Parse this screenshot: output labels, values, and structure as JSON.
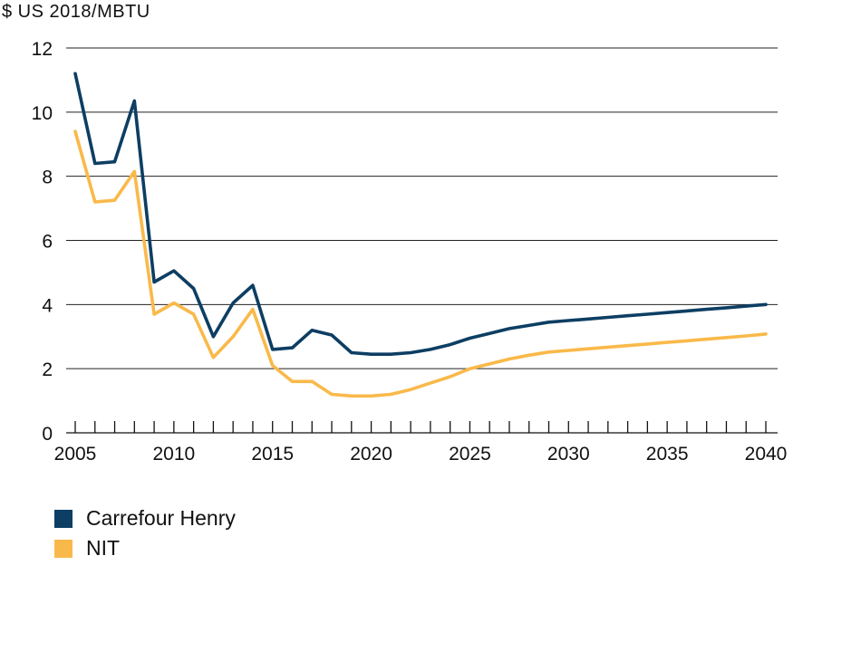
{
  "chart_data": {
    "type": "line",
    "title": "",
    "ylabel": "$ US 2018/MBTU",
    "xlabel": "",
    "xlim": [
      2005,
      2040
    ],
    "ylim": [
      0,
      12
    ],
    "x_ticks": [
      "2005",
      "2010",
      "2015",
      "2020",
      "2025",
      "2030",
      "2035",
      "2040"
    ],
    "y_ticks": [
      "0",
      "2",
      "4",
      "6",
      "8",
      "10",
      "12"
    ],
    "grid": "horizontal",
    "legend_position": "bottom-left",
    "x": [
      2005,
      2006,
      2007,
      2008,
      2009,
      2010,
      2011,
      2012,
      2013,
      2014,
      2015,
      2016,
      2017,
      2018,
      2019,
      2020,
      2021,
      2022,
      2023,
      2024,
      2025,
      2026,
      2027,
      2028,
      2029,
      2030,
      2031,
      2032,
      2033,
      2034,
      2035,
      2036,
      2037,
      2038,
      2039,
      2040
    ],
    "series": [
      {
        "name": "Carrefour Henry",
        "color": "#0d3e63",
        "values": [
          11.2,
          8.4,
          8.45,
          10.35,
          4.7,
          5.05,
          4.5,
          3.0,
          4.05,
          4.6,
          2.6,
          2.65,
          3.2,
          3.05,
          2.5,
          2.45,
          2.45,
          2.5,
          2.6,
          2.75,
          2.95,
          3.1,
          3.25,
          3.35,
          3.45,
          3.5,
          3.55,
          3.6,
          3.65,
          3.7,
          3.75,
          3.8,
          3.85,
          3.9,
          3.95,
          4.0
        ]
      },
      {
        "name": "NIT",
        "color": "#f9b94a",
        "values": [
          9.4,
          7.2,
          7.25,
          8.15,
          3.7,
          4.05,
          3.7,
          2.35,
          3.0,
          3.85,
          2.1,
          1.6,
          1.6,
          1.2,
          1.15,
          1.15,
          1.2,
          1.35,
          1.55,
          1.75,
          2.0,
          2.15,
          2.3,
          2.42,
          2.52,
          2.57,
          2.62,
          2.67,
          2.72,
          2.77,
          2.82,
          2.87,
          2.92,
          2.97,
          3.02,
          3.08
        ]
      }
    ]
  }
}
